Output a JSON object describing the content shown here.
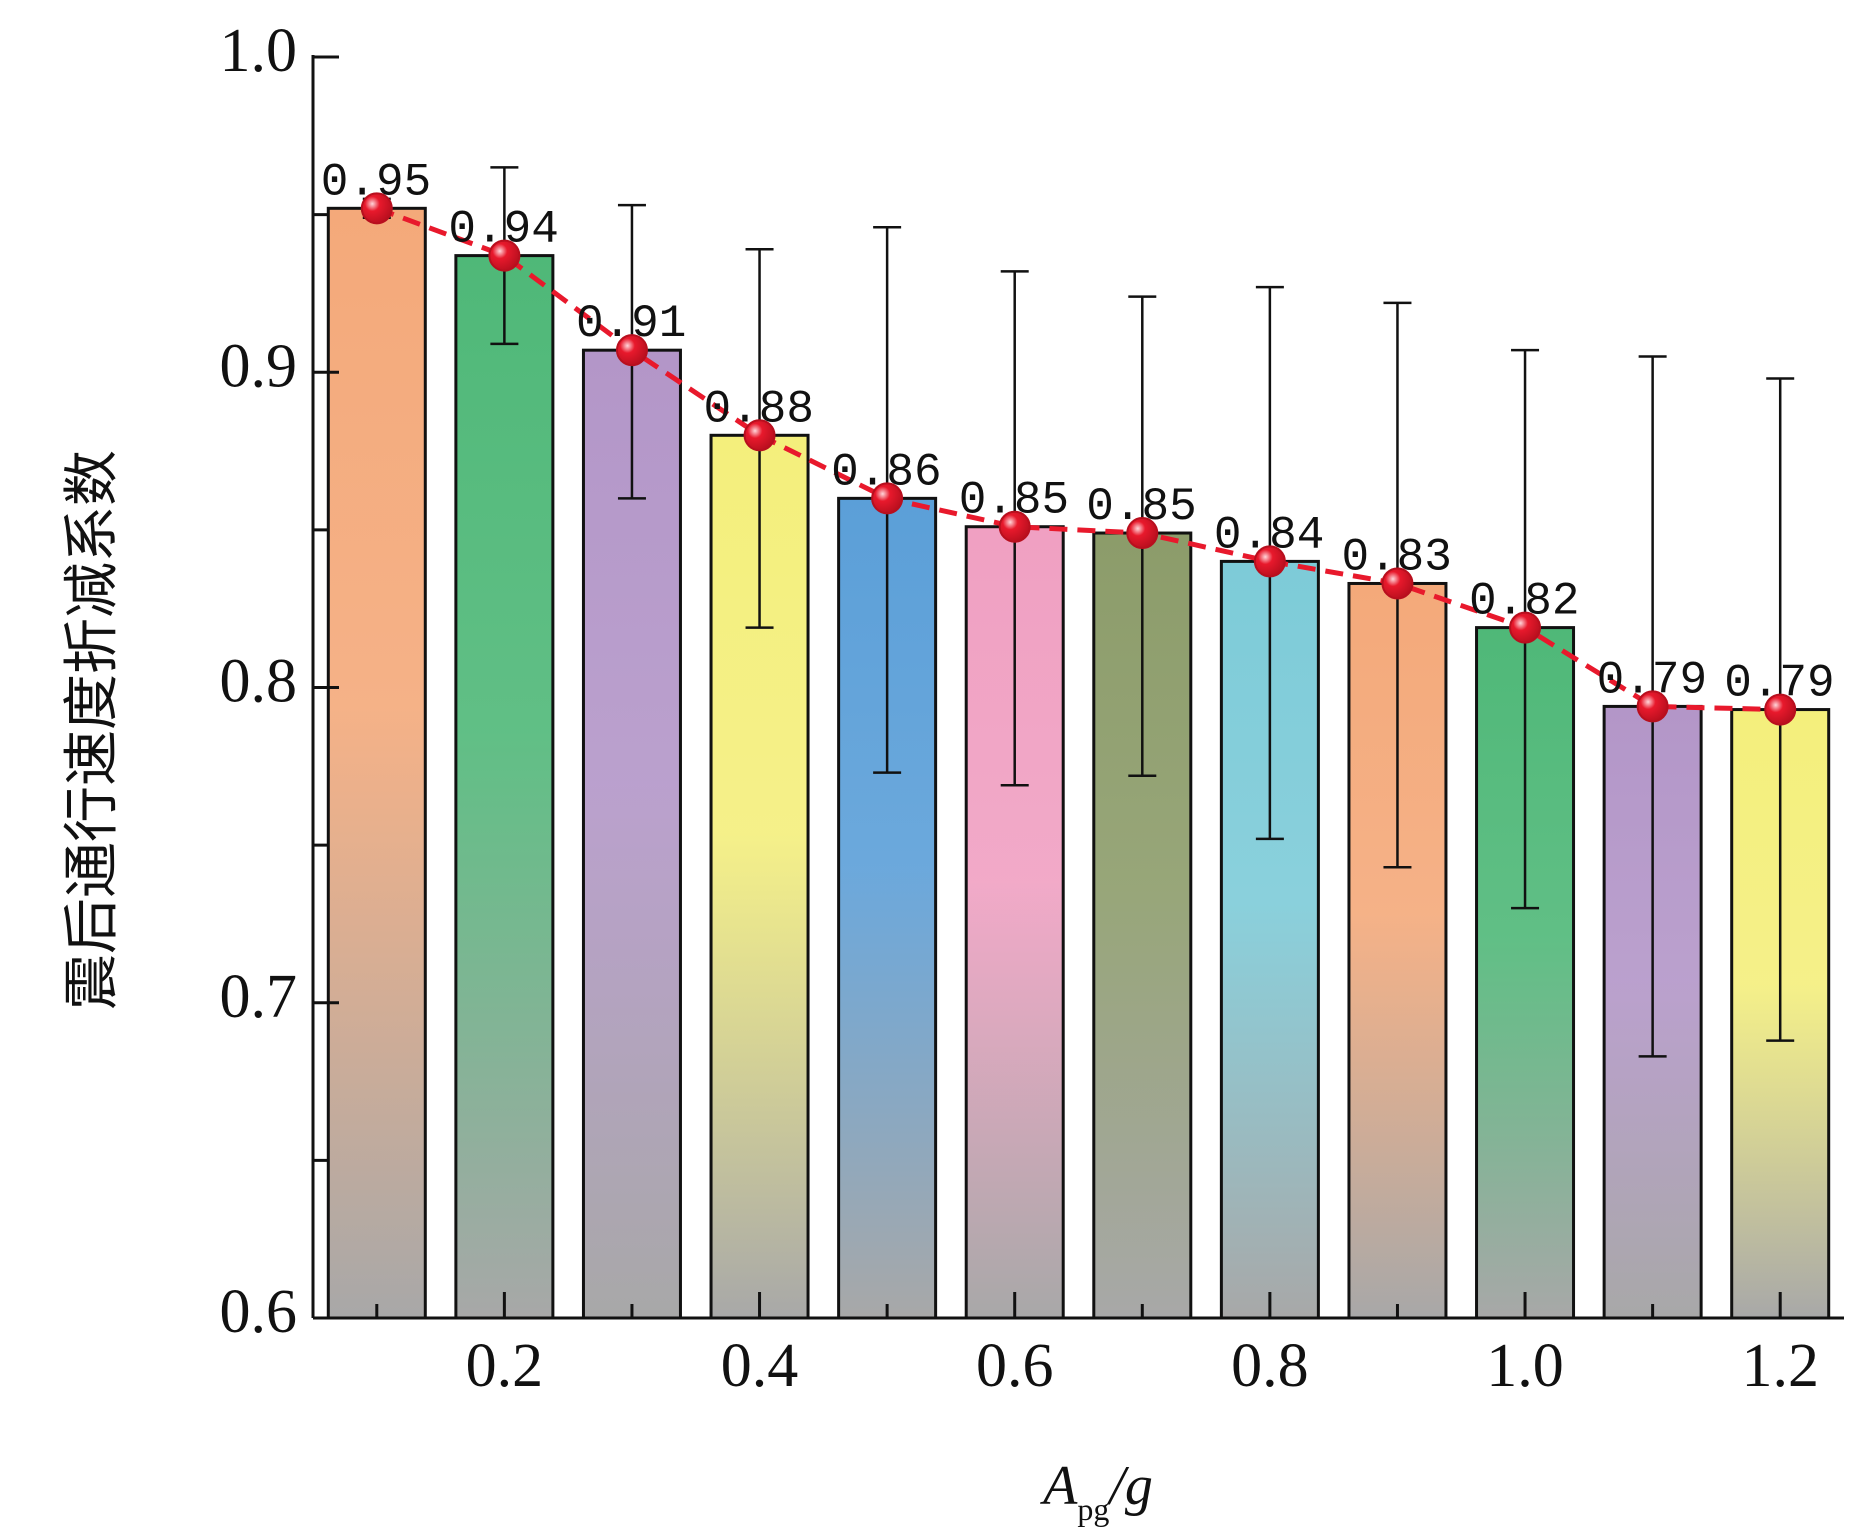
{
  "chart_data": {
    "type": "bar",
    "title": "",
    "xlabel": "A_pg/g",
    "xlabel_main": "A",
    "xlabel_sub": "pg",
    "xlabel_tail": "/g",
    "ylabel": "震后通行速度折减系数",
    "x": [
      0.1,
      0.2,
      0.3,
      0.4,
      0.5,
      0.6,
      0.7,
      0.8,
      0.9,
      1.0,
      1.1,
      1.2
    ],
    "values": [
      0.952,
      0.937,
      0.907,
      0.88,
      0.86,
      0.851,
      0.849,
      0.84,
      0.833,
      0.819,
      0.794,
      0.793
    ],
    "value_labels": [
      "0.95",
      "0.94",
      "0.91",
      "0.88",
      "0.86",
      "0.85",
      "0.85",
      "0.84",
      "0.83",
      "0.82",
      "0.79",
      "0.79"
    ],
    "error_upper": [
      0.955,
      0.965,
      0.953,
      0.939,
      0.946,
      0.932,
      0.924,
      0.927,
      0.922,
      0.907,
      0.905,
      0.898
    ],
    "error_lower": [
      0.949,
      0.909,
      0.86,
      0.819,
      0.773,
      0.769,
      0.772,
      0.752,
      0.743,
      0.73,
      0.683,
      0.688
    ],
    "bar_colors": [
      "#f4a97a",
      "#4fb878",
      "#b396c8",
      "#f4ef7c",
      "#5b9fd8",
      "#f0a0c2",
      "#8c9c6a",
      "#7dcbd8",
      "#f4a97a",
      "#4fb878",
      "#b396c8",
      "#f4ef7c"
    ],
    "bar_fade_color": "#a8a8a8",
    "line_color": "#e8192c",
    "ylim": [
      0.6,
      1.0
    ],
    "xlim": [
      0.05,
      1.25
    ],
    "yticks": [
      "0.6",
      "0.7",
      "0.8",
      "0.9",
      "1.0"
    ],
    "ytick_values": [
      0.6,
      0.7,
      0.8,
      0.9,
      1.0
    ],
    "xticks": [
      "0.2",
      "0.4",
      "0.6",
      "0.8",
      "1.0",
      "1.2"
    ],
    "xtick_values": [
      0.2,
      0.4,
      0.6,
      0.8,
      1.0,
      1.2
    ],
    "grid": false,
    "legend": "none"
  }
}
